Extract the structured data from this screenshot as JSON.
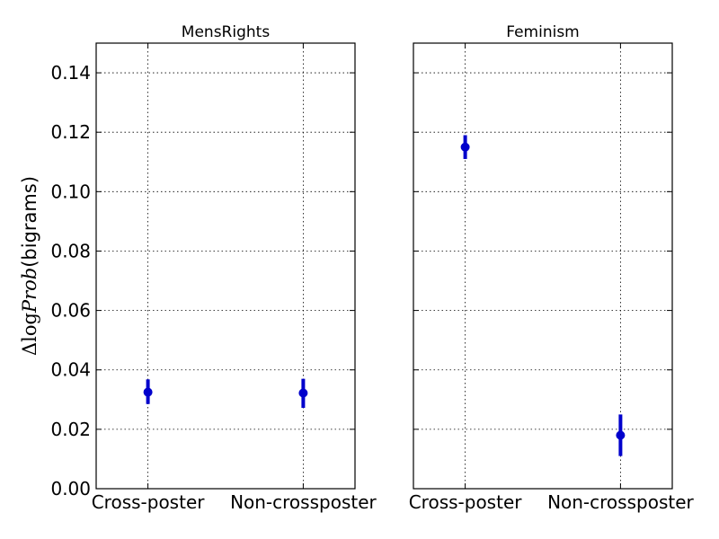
{
  "chart_data": [
    {
      "type": "scatter",
      "title": "MensRights",
      "categories": [
        "Cross-poster",
        "Non-crossposter"
      ],
      "series": [
        {
          "values": [
            0.0325,
            0.0322
          ],
          "err_low": [
            0.0285,
            0.0272
          ],
          "err_high": [
            0.0368,
            0.037
          ]
        }
      ],
      "ylim": [
        0.0,
        0.15
      ],
      "yticks": [
        "0.00",
        "0.02",
        "0.04",
        "0.06",
        "0.08",
        "0.10",
        "0.12",
        "0.14"
      ],
      "ylabel_symbol": "Δlog",
      "ylabel_italic": "Prob",
      "ylabel_text": "(bigrams)",
      "grid": true
    },
    {
      "type": "scatter",
      "title": "Feminism",
      "categories": [
        "Cross-poster",
        "Non-crossposter"
      ],
      "series": [
        {
          "values": [
            0.115,
            0.018
          ],
          "err_low": [
            0.111,
            0.011
          ],
          "err_high": [
            0.119,
            0.025
          ]
        }
      ],
      "ylim": [
        0.0,
        0.15
      ],
      "grid": true
    }
  ],
  "colors": {
    "marker": "#0000cc"
  }
}
